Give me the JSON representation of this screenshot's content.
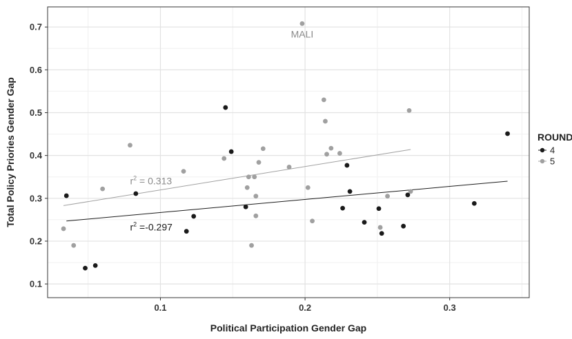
{
  "chart_data": {
    "type": "scatter",
    "xlabel": "Political Participation Gender Gap",
    "ylabel": "Total Policy Priories Gender Gap",
    "xlim": [
      0.022,
      0.355
    ],
    "ylim": [
      0.068,
      0.747
    ],
    "x_ticks": [
      0.1,
      0.2,
      0.3
    ],
    "x_tick_labels": [
      "0.1",
      "0.2",
      "0.3"
    ],
    "y_ticks": [
      0.1,
      0.2,
      0.3,
      0.4,
      0.5,
      0.6,
      0.7
    ],
    "y_tick_labels": [
      "0.1",
      "0.2",
      "0.3",
      "0.4",
      "0.5",
      "0.6",
      "0.7"
    ],
    "grid": true,
    "legend": {
      "title": "ROUND",
      "position": "right",
      "entries": [
        {
          "label": "4",
          "color": "#1a1a1a"
        },
        {
          "label": "5",
          "color": "#a0a0a0"
        }
      ]
    },
    "series": [
      {
        "name": "4",
        "color": "#1a1a1a",
        "points": [
          [
            0.035,
            0.306
          ],
          [
            0.048,
            0.137
          ],
          [
            0.055,
            0.143
          ],
          [
            0.083,
            0.311
          ],
          [
            0.118,
            0.223
          ],
          [
            0.123,
            0.258
          ],
          [
            0.145,
            0.512
          ],
          [
            0.149,
            0.409
          ],
          [
            0.159,
            0.28
          ],
          [
            0.226,
            0.277
          ],
          [
            0.229,
            0.377
          ],
          [
            0.231,
            0.316
          ],
          [
            0.241,
            0.244
          ],
          [
            0.251,
            0.276
          ],
          [
            0.253,
            0.218
          ],
          [
            0.268,
            0.235
          ],
          [
            0.271,
            0.308
          ],
          [
            0.317,
            0.288
          ],
          [
            0.34,
            0.451
          ]
        ],
        "trend": {
          "x": [
            0.035,
            0.34
          ],
          "y": [
            0.247,
            0.34
          ]
        }
      },
      {
        "name": "5",
        "color": "#a0a0a0",
        "points": [
          [
            0.033,
            0.229
          ],
          [
            0.04,
            0.19
          ],
          [
            0.06,
            0.322
          ],
          [
            0.079,
            0.424
          ],
          [
            0.116,
            0.363
          ],
          [
            0.144,
            0.393
          ],
          [
            0.16,
            0.325
          ],
          [
            0.161,
            0.35
          ],
          [
            0.163,
            0.19
          ],
          [
            0.165,
            0.35
          ],
          [
            0.166,
            0.305
          ],
          [
            0.166,
            0.259
          ],
          [
            0.168,
            0.384
          ],
          [
            0.171,
            0.416
          ],
          [
            0.189,
            0.373
          ],
          [
            0.198,
            0.708
          ],
          [
            0.202,
            0.325
          ],
          [
            0.205,
            0.247
          ],
          [
            0.213,
            0.53
          ],
          [
            0.214,
            0.48
          ],
          [
            0.215,
            0.403
          ],
          [
            0.218,
            0.417
          ],
          [
            0.224,
            0.405
          ],
          [
            0.252,
            0.232
          ],
          [
            0.257,
            0.305
          ],
          [
            0.272,
            0.505
          ],
          [
            0.273,
            0.316
          ]
        ],
        "trend": {
          "x": [
            0.033,
            0.273
          ],
          "y": [
            0.283,
            0.414
          ]
        }
      }
    ],
    "annotations": [
      {
        "text": "MALI",
        "x": 0.198,
        "y": 0.675,
        "color": "#8a8a8a",
        "anchor": "middle"
      },
      {
        "text": "r",
        "sup": "2",
        "rest": " = 0.313",
        "x": 0.079,
        "y": 0.333,
        "color": "#8a8a8a"
      },
      {
        "text": "r",
        "sup": "2",
        "rest": " =-0.297",
        "x": 0.079,
        "y": 0.225,
        "color": "#1a1a1a"
      }
    ]
  }
}
